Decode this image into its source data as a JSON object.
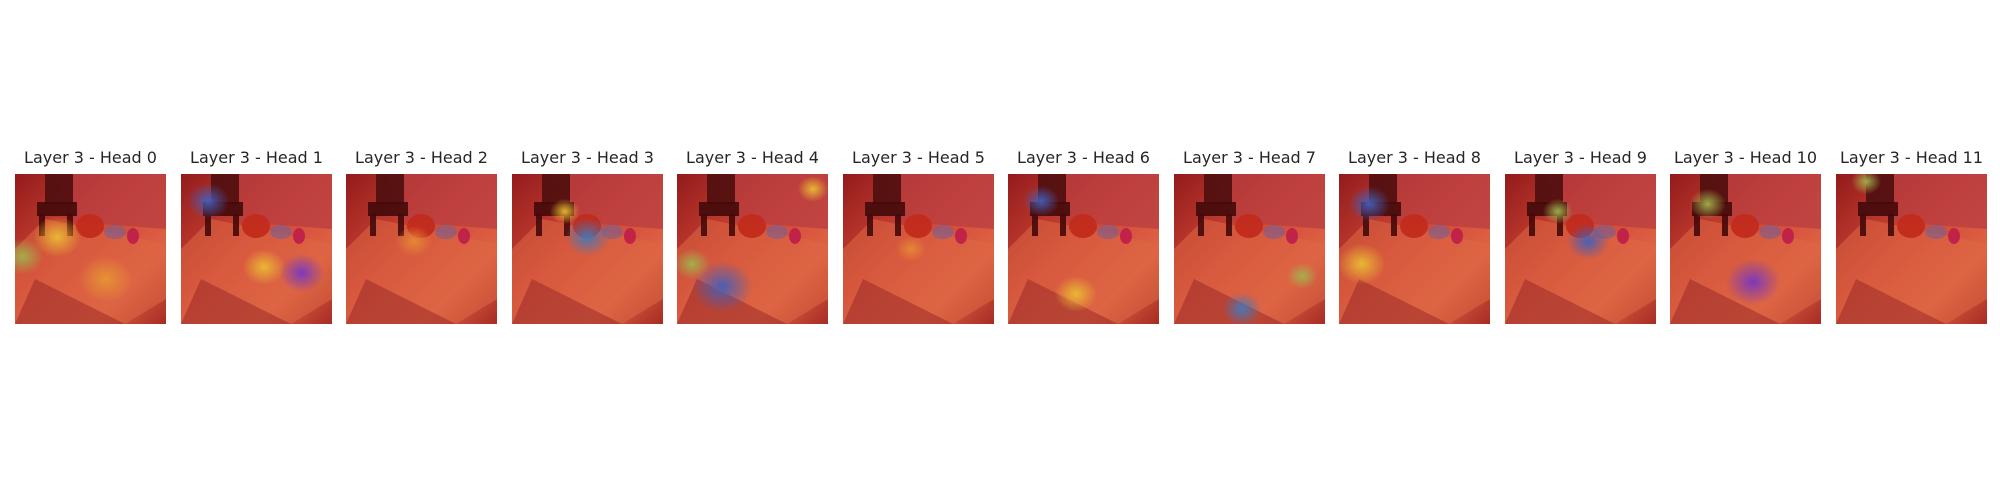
{
  "figure": {
    "panels": [
      {
        "title": "Layer 3 - Head 0",
        "hotspots": [
          {
            "fx": 0.28,
            "fy": 0.42,
            "r": 0.16,
            "c": "#f7e13a"
          },
          {
            "fx": 0.05,
            "fy": 0.55,
            "r": 0.14,
            "c": "#9fd55a"
          },
          {
            "fx": 0.6,
            "fy": 0.7,
            "r": 0.18,
            "c": "#f2b23a"
          }
        ]
      },
      {
        "title": "Layer 3 - Head 1",
        "hotspots": [
          {
            "fx": 0.18,
            "fy": 0.18,
            "r": 0.14,
            "c": "#2a6fe0"
          },
          {
            "fx": 0.8,
            "fy": 0.66,
            "r": 0.15,
            "c": "#6a3fe8"
          },
          {
            "fx": 0.55,
            "fy": 0.62,
            "r": 0.14,
            "c": "#f7e13a"
          }
        ]
      },
      {
        "title": "Layer 3 - Head 2",
        "hotspots": [
          {
            "fx": 0.45,
            "fy": 0.45,
            "r": 0.12,
            "c": "#f2a23a"
          }
        ]
      },
      {
        "title": "Layer 3 - Head 3",
        "hotspots": [
          {
            "fx": 0.5,
            "fy": 0.42,
            "r": 0.15,
            "c": "#2a8fe0"
          },
          {
            "fx": 0.35,
            "fy": 0.25,
            "r": 0.1,
            "c": "#f7e13a"
          }
        ]
      },
      {
        "title": "Layer 3 - Head 4",
        "hotspots": [
          {
            "fx": 0.3,
            "fy": 0.75,
            "r": 0.2,
            "c": "#2a6fe0"
          },
          {
            "fx": 0.1,
            "fy": 0.6,
            "r": 0.12,
            "c": "#9fd55a"
          },
          {
            "fx": 0.9,
            "fy": 0.1,
            "r": 0.1,
            "c": "#f7e13a"
          }
        ]
      },
      {
        "title": "Layer 3 - Head 5",
        "hotspots": [
          {
            "fx": 0.45,
            "fy": 0.5,
            "r": 0.1,
            "c": "#f2a23a"
          }
        ]
      },
      {
        "title": "Layer 3 - Head 6",
        "hotspots": [
          {
            "fx": 0.22,
            "fy": 0.18,
            "r": 0.12,
            "c": "#2a6fe0"
          },
          {
            "fx": 0.45,
            "fy": 0.8,
            "r": 0.14,
            "c": "#f7e13a"
          }
        ]
      },
      {
        "title": "Layer 3 - Head 7",
        "hotspots": [
          {
            "fx": 0.45,
            "fy": 0.9,
            "r": 0.13,
            "c": "#2a8fe0"
          },
          {
            "fx": 0.85,
            "fy": 0.68,
            "r": 0.1,
            "c": "#9fd55a"
          }
        ]
      },
      {
        "title": "Layer 3 - Head 8",
        "hotspots": [
          {
            "fx": 0.2,
            "fy": 0.2,
            "r": 0.14,
            "c": "#2a6fe0"
          },
          {
            "fx": 0.15,
            "fy": 0.6,
            "r": 0.16,
            "c": "#f7e13a"
          }
        ]
      },
      {
        "title": "Layer 3 - Head 9",
        "hotspots": [
          {
            "fx": 0.55,
            "fy": 0.45,
            "r": 0.14,
            "c": "#2a6fe0"
          },
          {
            "fx": 0.35,
            "fy": 0.25,
            "r": 0.1,
            "c": "#9fd55a"
          }
        ]
      },
      {
        "title": "Layer 3 - Head 10",
        "hotspots": [
          {
            "fx": 0.55,
            "fy": 0.72,
            "r": 0.18,
            "c": "#6a3fe8"
          },
          {
            "fx": 0.25,
            "fy": 0.2,
            "r": 0.12,
            "c": "#9fd55a"
          }
        ]
      },
      {
        "title": "Layer 3 - Head 11",
        "hotspots": [
          {
            "fx": 0.2,
            "fy": 0.05,
            "r": 0.1,
            "c": "#9fd55a"
          }
        ]
      }
    ]
  }
}
